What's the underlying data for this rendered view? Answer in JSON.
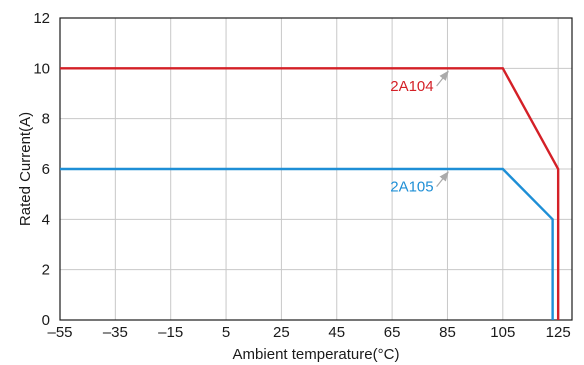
{
  "chart_data": {
    "type": "line",
    "xlabel": "Ambient temperature(°C)",
    "ylabel": "Rated Current(A)",
    "xlim": [
      -55,
      130
    ],
    "ylim": [
      0,
      12
    ],
    "x_ticks": [
      "–55",
      "–35",
      "–15",
      "5",
      "25",
      "45",
      "65",
      "85",
      "105",
      "125"
    ],
    "x_tick_values": [
      -55,
      -35,
      -15,
      5,
      25,
      45,
      65,
      85,
      105,
      125
    ],
    "y_ticks": [
      "0",
      "2",
      "4",
      "6",
      "8",
      "10",
      "12"
    ],
    "y_tick_values": [
      0,
      2,
      4,
      6,
      8,
      10,
      12
    ],
    "grid": true,
    "series": [
      {
        "name": "2A104",
        "color": "#d42027",
        "points": [
          [
            -55,
            10
          ],
          [
            105,
            10
          ],
          [
            125,
            6
          ],
          [
            125,
            0
          ]
        ],
        "label_at": [
          80,
          9.1
        ],
        "arrow_to": [
          86,
          10
        ]
      },
      {
        "name": "2A105",
        "color": "#1e8fd6",
        "points": [
          [
            -55,
            6
          ],
          [
            105,
            6
          ],
          [
            123,
            4
          ],
          [
            123,
            0
          ]
        ],
        "label_at": [
          80,
          5.1
        ],
        "arrow_to": [
          86,
          6
        ]
      }
    ]
  }
}
